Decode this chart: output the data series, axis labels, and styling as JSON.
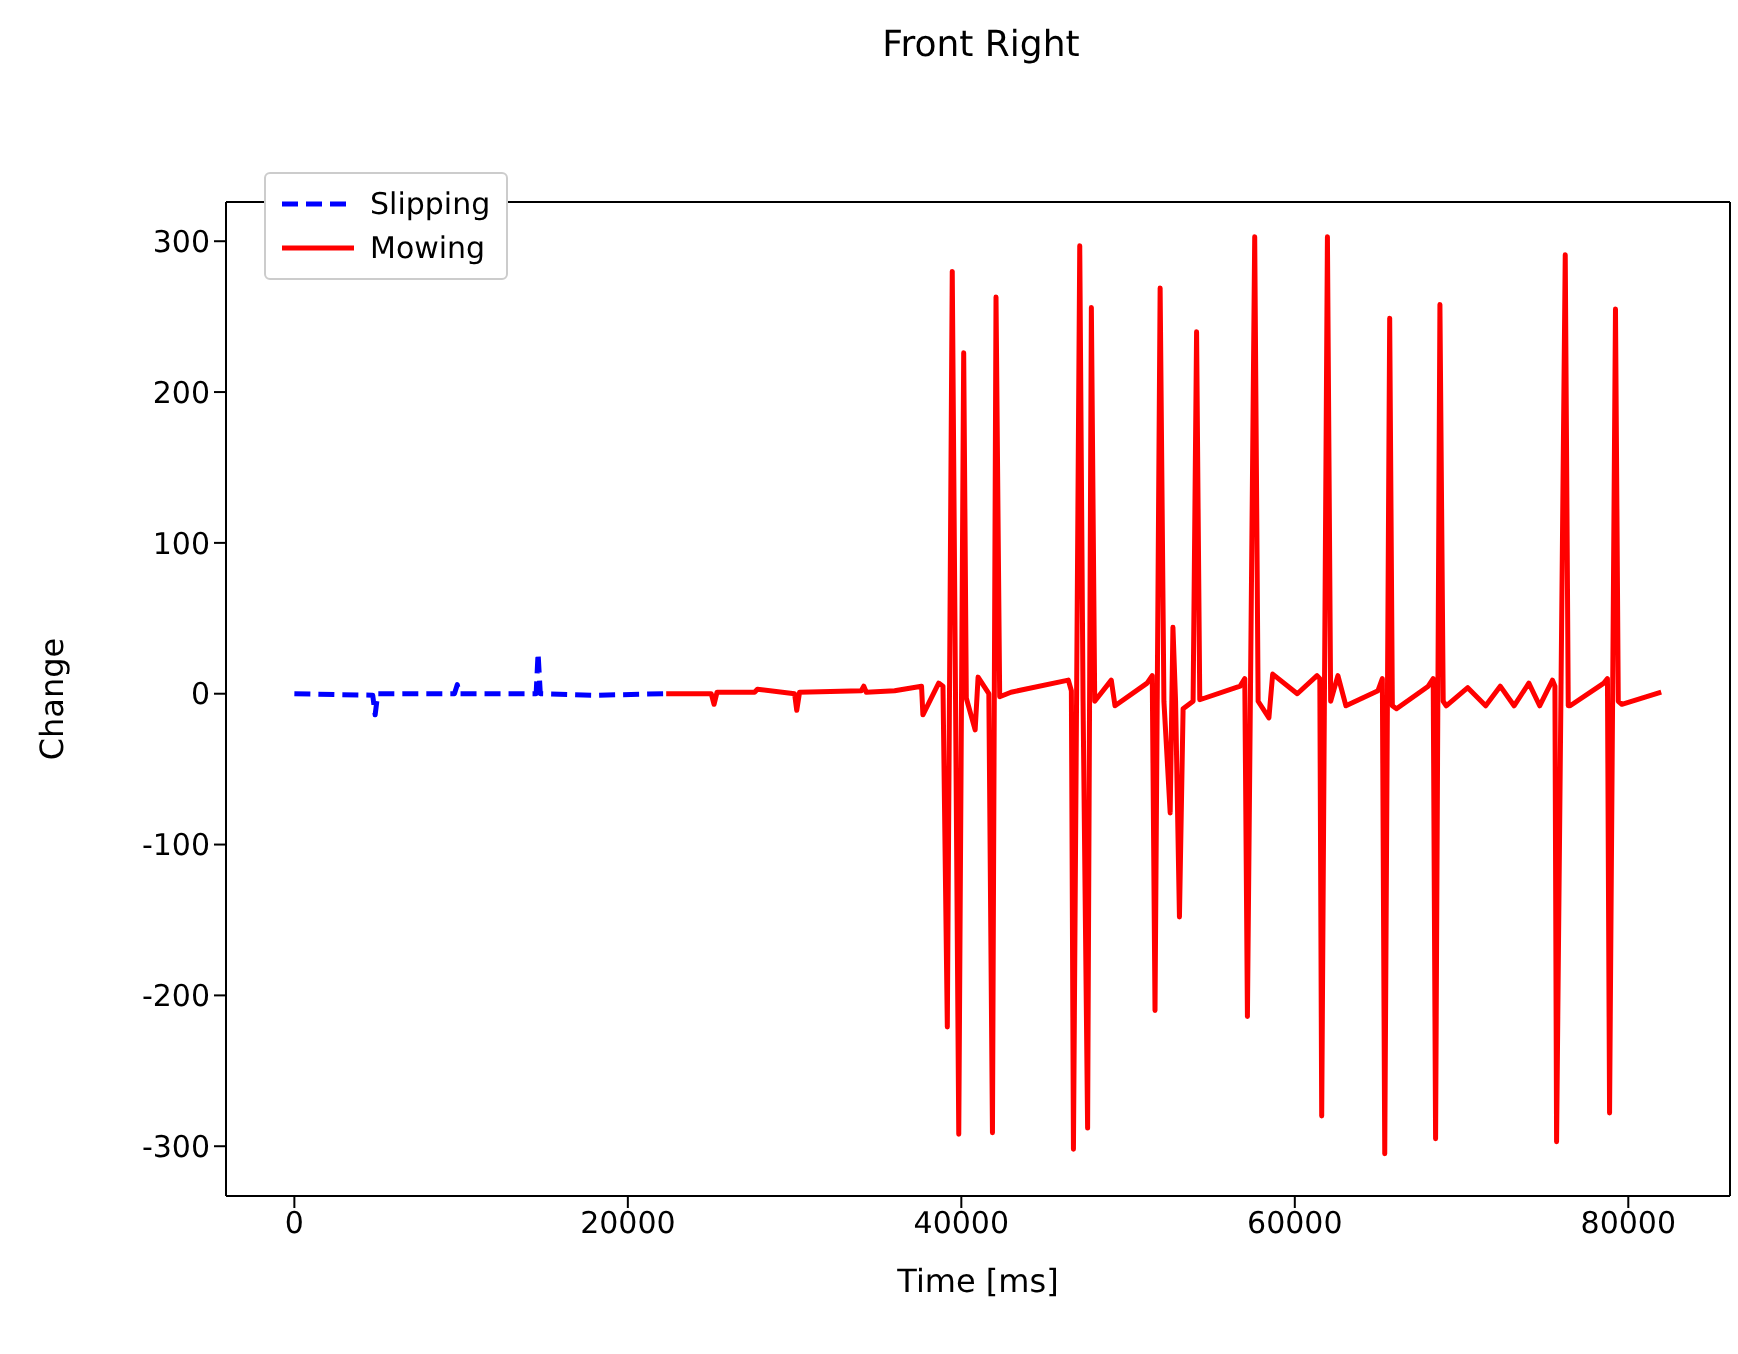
{
  "chart_data": {
    "type": "line",
    "title": "Front Right",
    "xlabel": "Time [ms]",
    "ylabel": "Change",
    "xlim": [
      -4100,
      86100
    ],
    "ylim": [
      -333,
      326
    ],
    "xticks": [
      0,
      20000,
      40000,
      60000,
      80000
    ],
    "yticks": [
      -300,
      -200,
      -100,
      0,
      100,
      200,
      300
    ],
    "legend": "top left",
    "series": [
      {
        "name": "Slipping",
        "color": "#0000ff",
        "line_style": "dashed",
        "x": [
          0,
          4700,
          4845,
          5000,
          9600,
          9770,
          9900,
          14500,
          14616,
          14750,
          18000,
          22300
        ],
        "values": [
          0,
          -1,
          -14,
          0,
          0,
          6,
          0,
          0,
          27,
          0,
          -1,
          0
        ]
      },
      {
        "name": "Mowing",
        "color": "#ff0000",
        "line_style": "solid",
        "x": [
          22300,
          25000,
          25170,
          25350,
          27600,
          27770,
          30000,
          30130,
          30300,
          34000,
          34150,
          34300,
          36000,
          37614,
          37696,
          38642,
          38900,
          39160,
          39456,
          39650,
          39846,
          40142,
          40300,
          40829,
          41005,
          41650,
          41867,
          42080,
          42300,
          42979,
          46417,
          46600,
          46724,
          47102,
          47300,
          47574,
          47799,
          48000,
          48993,
          49217,
          51143,
          51450,
          51616,
          51923,
          52150,
          52526,
          52691,
          52850,
          53081,
          53300,
          53900,
          54109,
          54300,
          56722,
          57000,
          57158,
          57595,
          57800,
          58447,
          58672,
          60149,
          61331,
          61500,
          61613,
          61956,
          62150,
          62585,
          63066,
          64990,
          65250,
          65394,
          65690,
          65850,
          66100,
          68005,
          68300,
          68443,
          68703,
          68900,
          69083,
          70372,
          71447,
          72321,
          73150,
          74036,
          74686,
          75454,
          75600,
          75699,
          76219,
          76400,
          76513,
          78535,
          78750,
          78877,
          79232,
          79400,
          79611,
          81975
        ],
        "values": [
          0,
          0,
          -7,
          1,
          1,
          3,
          0,
          -11,
          1,
          2,
          5,
          1,
          2,
          5,
          -14,
          7,
          5,
          -221,
          280,
          0,
          -292,
          226,
          -3,
          -24,
          11,
          0,
          -291,
          263,
          -2,
          1,
          9,
          2,
          -302,
          297,
          -5,
          -288,
          256,
          -5,
          9,
          -8,
          7,
          12,
          -210,
          269,
          -5,
          -79,
          44,
          -5,
          -148,
          -10,
          -5,
          240,
          -4,
          5,
          10,
          -214,
          303,
          -5,
          -16,
          13,
          0,
          12,
          10,
          -280,
          303,
          -5,
          12,
          -8,
          2,
          10,
          -305,
          249,
          -8,
          -10,
          5,
          10,
          -295,
          258,
          -5,
          -8,
          4,
          -8,
          5,
          -8,
          7,
          -8,
          9,
          5,
          -297,
          291,
          -8,
          -8,
          7,
          10,
          -278,
          255,
          -5,
          -7,
          1
        ]
      }
    ]
  }
}
